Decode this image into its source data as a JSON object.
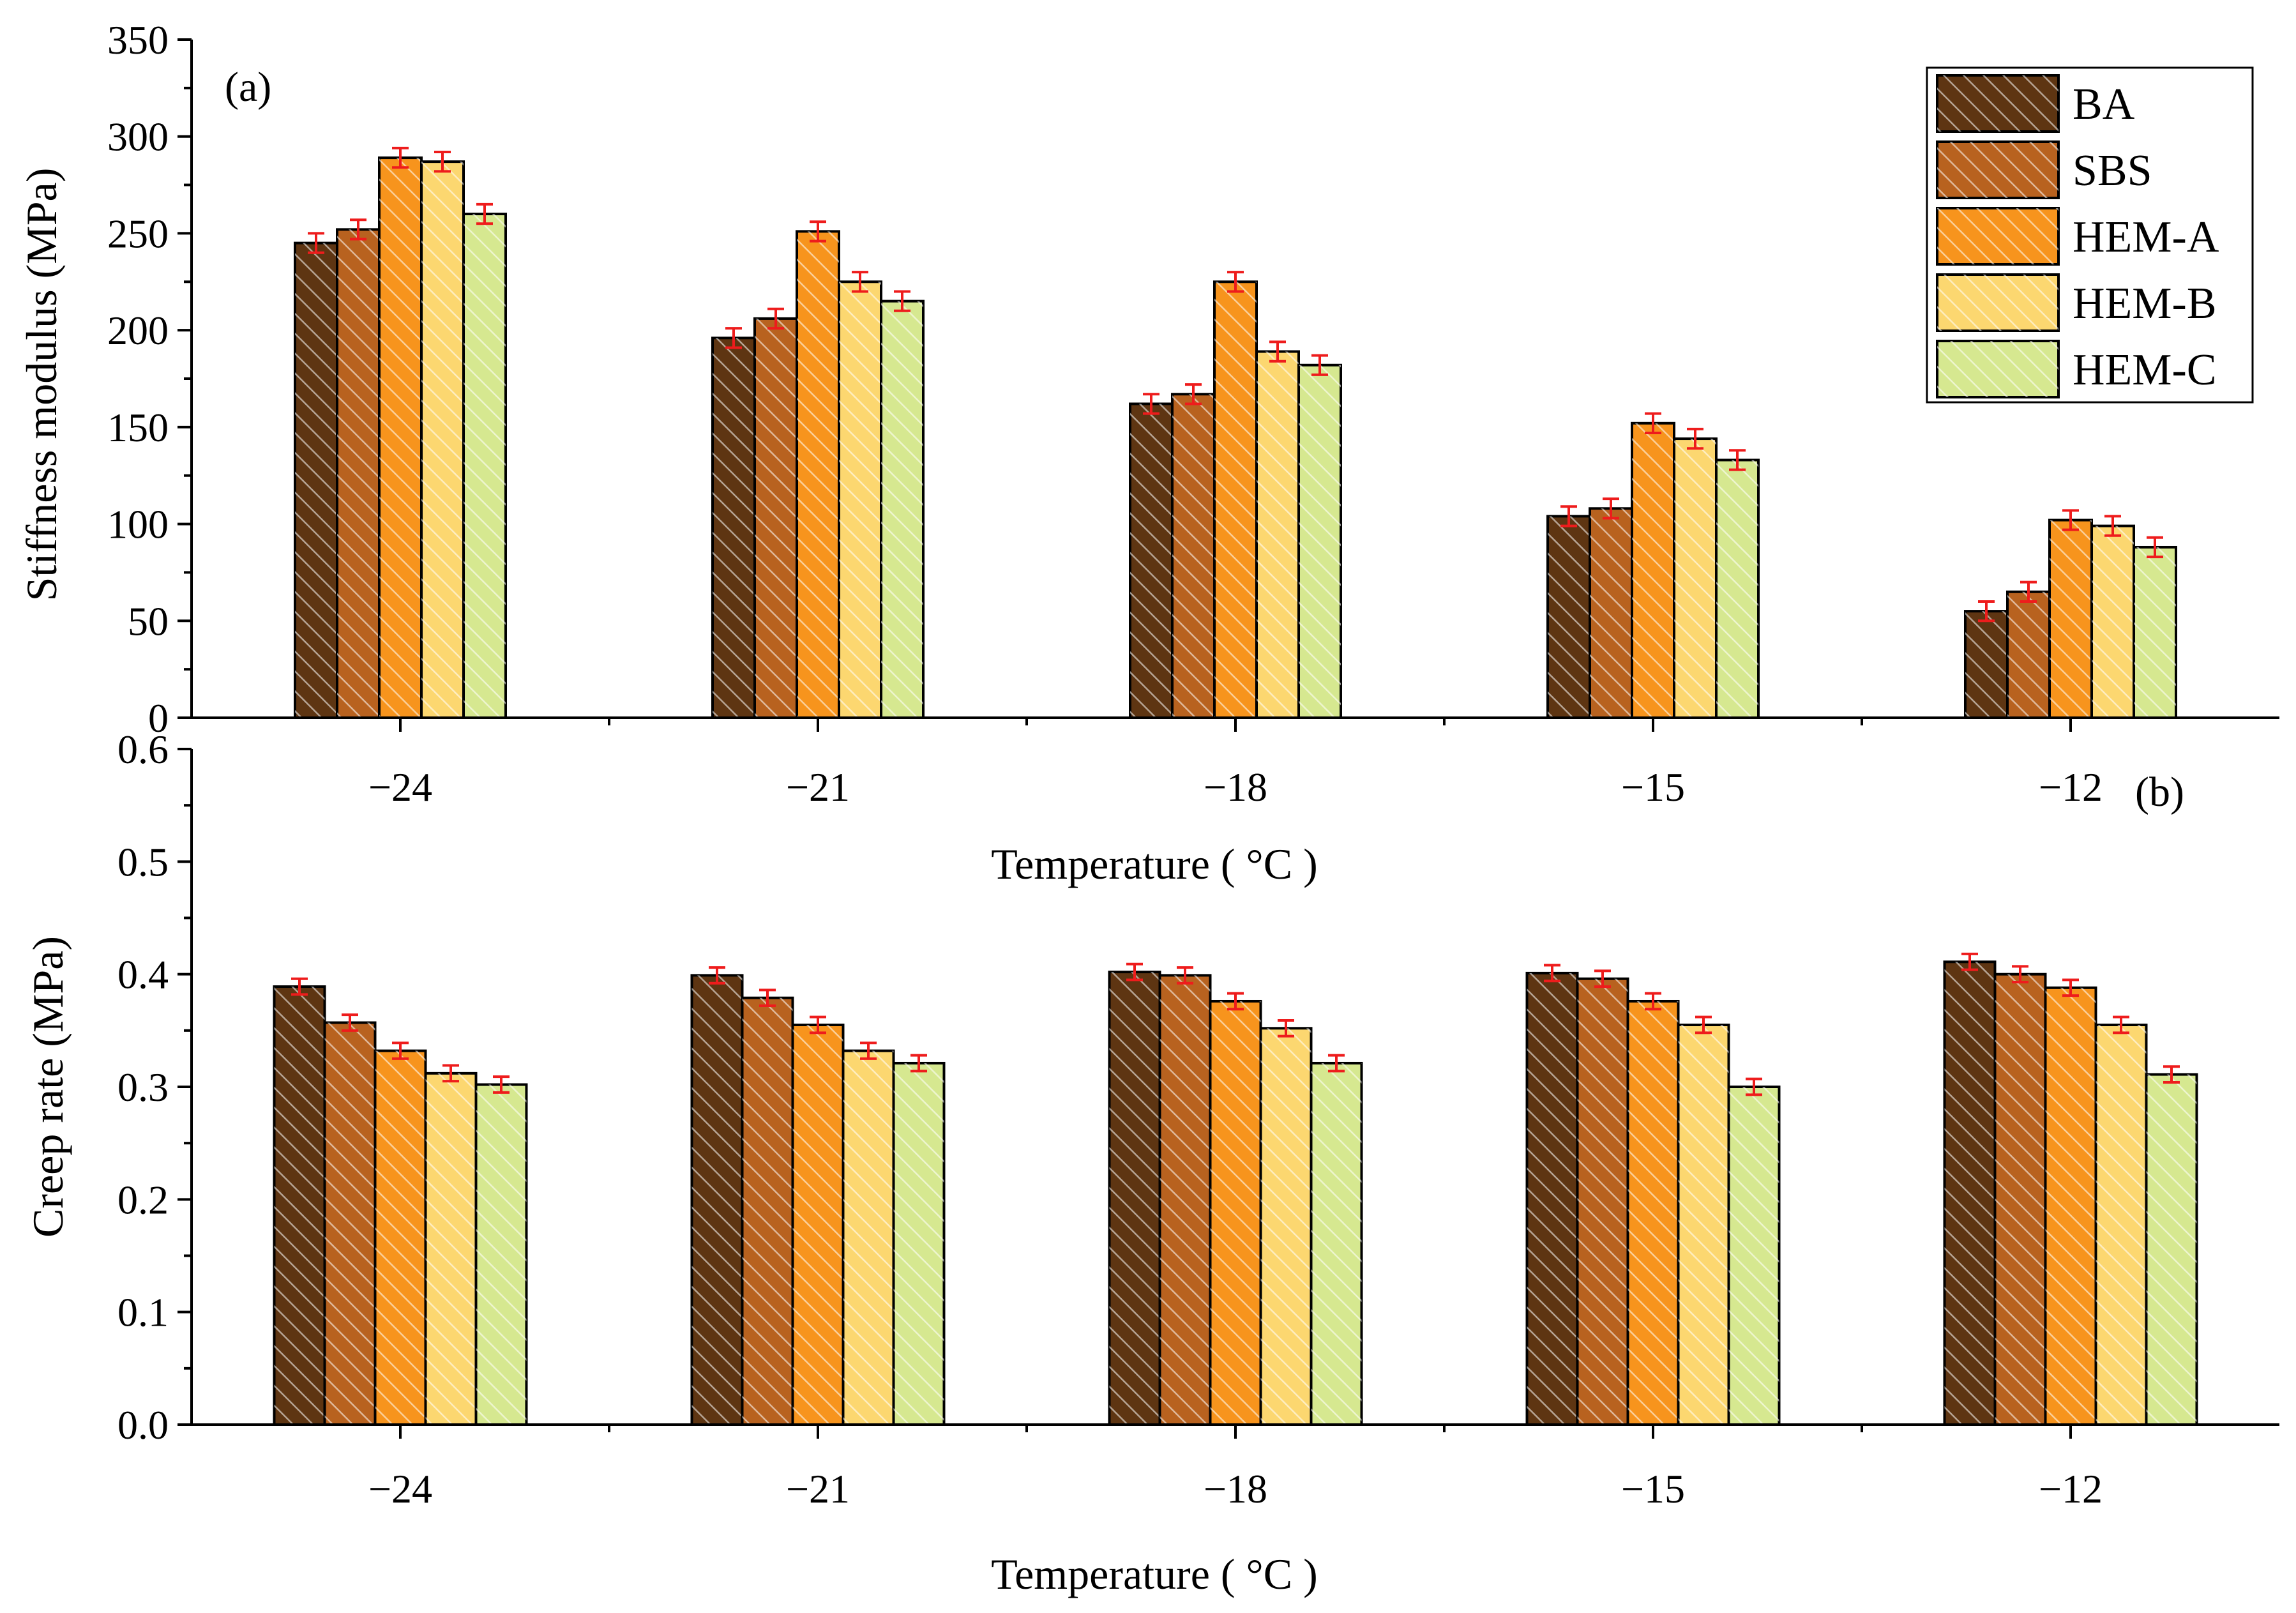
{
  "chart_data": [
    {
      "panel_label": "(a)",
      "type": "bar",
      "categories": [
        "−24",
        "−21",
        "−18",
        "−15",
        "−12"
      ],
      "series": [
        {
          "name": "BA",
          "color": "#5e3512",
          "values": [
            245,
            196,
            162,
            104,
            55
          ],
          "errors": [
            5,
            5,
            5,
            5,
            5
          ]
        },
        {
          "name": "SBS",
          "color": "#b8621f",
          "values": [
            252,
            206,
            167,
            108,
            65
          ],
          "errors": [
            5,
            5,
            5,
            5,
            5
          ]
        },
        {
          "name": "HEM-A",
          "color": "#f7941d",
          "values": [
            289,
            251,
            225,
            152,
            102
          ],
          "errors": [
            5,
            5,
            5,
            5,
            5
          ]
        },
        {
          "name": "HEM-B",
          "color": "#fcd770",
          "values": [
            287,
            225,
            189,
            144,
            99
          ],
          "errors": [
            5,
            5,
            5,
            5,
            5
          ]
        },
        {
          "name": "HEM-C",
          "color": "#d6e890",
          "values": [
            260,
            215,
            182,
            133,
            88
          ],
          "errors": [
            5,
            5,
            5,
            5,
            5
          ]
        }
      ],
      "title": "",
      "xlabel": "Temperature ( °C )",
      "ylabel": "Stiffness modulus (MPa)",
      "ylim": [
        0,
        350
      ],
      "yticks": [
        "0",
        "50",
        "100",
        "150",
        "200",
        "250",
        "300",
        "350"
      ],
      "legend_position": "top-right"
    },
    {
      "panel_label": "(b)",
      "type": "bar",
      "categories": [
        "−24",
        "−21",
        "−18",
        "−15",
        "−12"
      ],
      "series": [
        {
          "name": "BA",
          "color": "#5e3512",
          "values": [
            0.389,
            0.399,
            0.402,
            0.401,
            0.411
          ],
          "errors": [
            0.007,
            0.007,
            0.007,
            0.007,
            0.007
          ]
        },
        {
          "name": "SBS",
          "color": "#b8621f",
          "values": [
            0.357,
            0.379,
            0.399,
            0.396,
            0.4
          ],
          "errors": [
            0.007,
            0.007,
            0.007,
            0.007,
            0.007
          ]
        },
        {
          "name": "HEM-A",
          "color": "#f7941d",
          "values": [
            0.332,
            0.355,
            0.376,
            0.376,
            0.388
          ],
          "errors": [
            0.007,
            0.007,
            0.007,
            0.007,
            0.007
          ]
        },
        {
          "name": "HEM-B",
          "color": "#fcd770",
          "values": [
            0.312,
            0.332,
            0.352,
            0.355,
            0.355
          ],
          "errors": [
            0.007,
            0.007,
            0.007,
            0.007,
            0.007
          ]
        },
        {
          "name": "HEM-C",
          "color": "#d6e890",
          "values": [
            0.302,
            0.321,
            0.321,
            0.3,
            0.311
          ],
          "errors": [
            0.007,
            0.007,
            0.007,
            0.007,
            0.007
          ]
        }
      ],
      "title": "",
      "xlabel": "Temperature ( °C )",
      "ylabel": "Creep rate (MPa)",
      "ylim": [
        0.0,
        0.6
      ],
      "yticks": [
        "0.0",
        "0.1",
        "0.2",
        "0.3",
        "0.4",
        "0.5",
        "0.6"
      ]
    }
  ]
}
